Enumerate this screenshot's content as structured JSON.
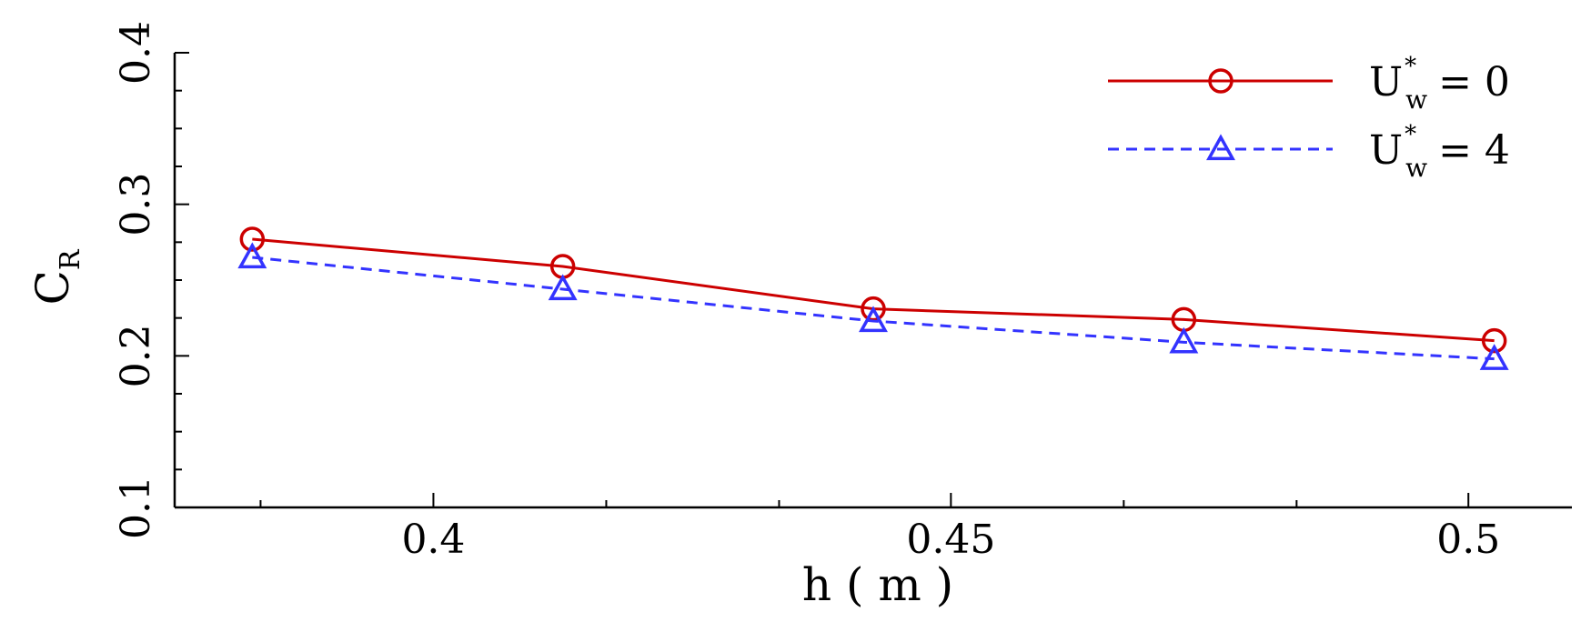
{
  "chart_data": {
    "type": "line",
    "xlabel": "h ( m )",
    "ylabel": {
      "main": "C",
      "sub": "R"
    },
    "xlim": [
      0.375,
      0.51
    ],
    "ylim": [
      0.1,
      0.4
    ],
    "x_ticks": [
      0.4,
      0.45,
      0.5
    ],
    "x_tick_labels": [
      "0.4",
      "0.45",
      "0.5"
    ],
    "x_minor_step": 0.0167,
    "y_ticks": [
      0.1,
      0.2,
      0.3,
      0.4
    ],
    "y_tick_labels": [
      "0.1",
      "0.2",
      "0.3",
      "0.4"
    ],
    "y_minor_step": 0.025,
    "grid": false,
    "legend_position": "top-right",
    "series": [
      {
        "name": "U*w = 0",
        "legend": {
          "base": "U",
          "sup": "*",
          "sub": "w",
          "rest": "= 0"
        },
        "color": "#cc0000",
        "line_style": "solid",
        "marker": "circle",
        "x": [
          0.3825,
          0.4125,
          0.4425,
          0.4725,
          0.5025
        ],
        "y": [
          0.277,
          0.259,
          0.231,
          0.224,
          0.21
        ]
      },
      {
        "name": "U*w = 4",
        "legend": {
          "base": "U",
          "sup": "*",
          "sub": "w",
          "rest": "= 4"
        },
        "color": "#3333ff",
        "line_style": "dashed",
        "marker": "triangle",
        "x": [
          0.3825,
          0.4125,
          0.4425,
          0.4725,
          0.5025
        ],
        "y": [
          0.265,
          0.244,
          0.223,
          0.209,
          0.198
        ]
      }
    ]
  }
}
